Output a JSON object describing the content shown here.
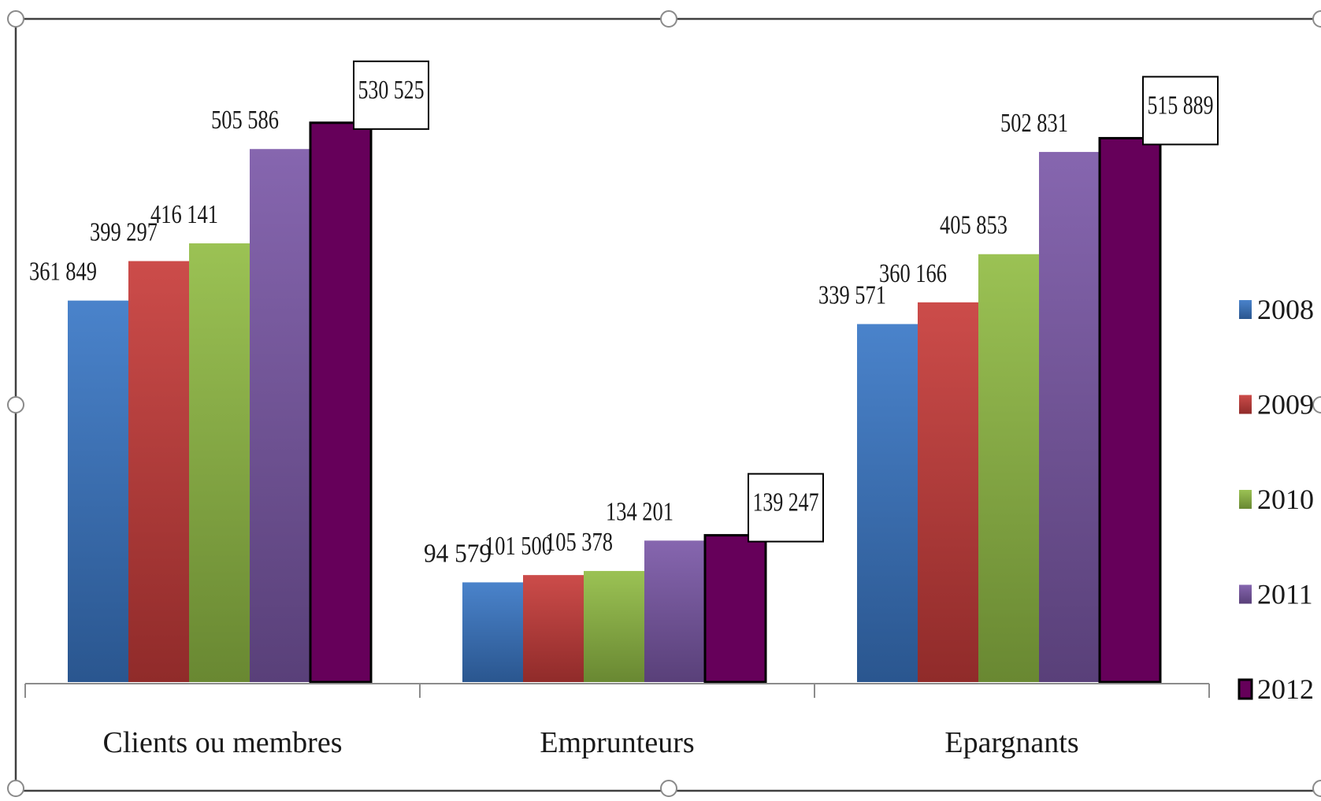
{
  "chart_data": {
    "type": "bar",
    "title": "",
    "xlabel": "",
    "ylabel": "",
    "categories": [
      "Clients ou membres",
      "Emprunteurs",
      "Epargnants"
    ],
    "series": [
      {
        "name": "2008",
        "color": "#3a78c7",
        "values": [
          361849,
          94579,
          339571
        ],
        "labels": [
          "361 849",
          "94 579",
          "339 571"
        ]
      },
      {
        "name": "2009",
        "color": "#c83c3a",
        "values": [
          399297,
          101500,
          360166
        ],
        "labels": [
          "399 297",
          "101 500",
          "360 166"
        ]
      },
      {
        "name": "2010",
        "color": "#92bd45",
        "values": [
          416141,
          105378,
          405853
        ],
        "labels": [
          "416 141",
          "105 378",
          "405 853"
        ]
      },
      {
        "name": "2011",
        "color": "#7b59a8",
        "values": [
          505586,
          134201,
          502831
        ],
        "labels": [
          "505 586",
          "134 201",
          "502 831"
        ]
      },
      {
        "name": "2012",
        "color": "#66005a",
        "values": [
          530525,
          139247,
          515889
        ],
        "labels": [
          "530 525",
          "139 247",
          "515 889"
        ]
      }
    ],
    "ylim": [
      0,
      570000
    ],
    "grid": false,
    "legend_position": "right",
    "boxed_labels_series": "2012"
  }
}
